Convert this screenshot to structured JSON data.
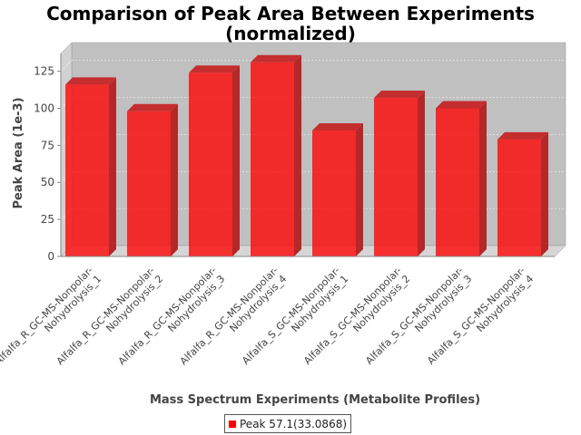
{
  "chart_data": {
    "type": "bar",
    "title_line1": "Comparison of Peak Area Between Experiments",
    "title_line2": "(normalized)",
    "xlabel": "Mass Spectrum Experiments (Metabolite Profiles)",
    "ylabel": "Peak Area (1e-3)",
    "ylim": [
      0,
      137
    ],
    "yticks": [
      0,
      25,
      50,
      75,
      100,
      125
    ],
    "grid": true,
    "legend_placement": "bottom",
    "bar_color": "#ff0000",
    "categories": [
      [
        "Alfalfa_R_GC-MS-Nonpolar-",
        "Nohydrolysis_1"
      ],
      [
        "Alfalfa_R_GC-MS-Nonpolar-",
        "Nohydrolysis_2"
      ],
      [
        "Alfalfa_R_GC-MS-Nonpolar-",
        "Nohydrolysis_3"
      ],
      [
        "Alfalfa_R_GC-MS-Nonpolar-",
        "Nohydrolysis_4"
      ],
      [
        "Alfalfa_S_GC-MS-Nonpolar-",
        "Nohydrolysis_1"
      ],
      [
        "Alfalfa_S_GC-MS-Nonpolar-",
        "Nohydrolysis_2"
      ],
      [
        "Alfalfa_S_GC-MS-Nonpolar-",
        "Nohydrolysis_3"
      ],
      [
        "Alfalfa_S_GC-MS-Nonpolar-",
        "Nohydrolysis_4"
      ]
    ],
    "series": [
      {
        "name": "Peak 57.1(33.0868)",
        "values": [
          116,
          98,
          124,
          131,
          85,
          107,
          100,
          79
        ]
      }
    ]
  }
}
